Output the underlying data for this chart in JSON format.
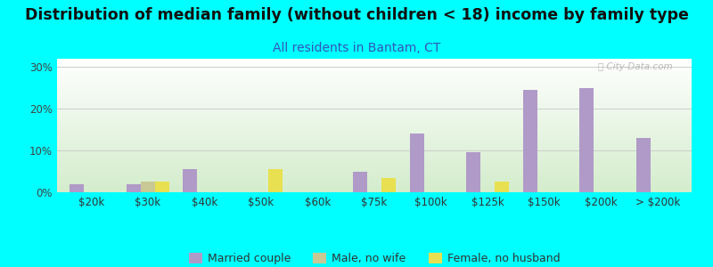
{
  "title": "Distribution of median family (without children < 18) income by family type",
  "subtitle": "All residents in Bantam, CT",
  "background_color": "#00FFFF",
  "categories": [
    "$20k",
    "$30k",
    "$40k",
    "$50k",
    "$60k",
    "$75k",
    "$100k",
    "$125k",
    "$150k",
    "$200k",
    "> $200k"
  ],
  "married_couple": [
    2.0,
    2.0,
    5.5,
    0.0,
    0.0,
    5.0,
    14.0,
    9.5,
    24.5,
    25.0,
    13.0
  ],
  "male_no_wife": [
    0.0,
    2.5,
    0.0,
    0.0,
    0.0,
    0.0,
    0.0,
    0.0,
    0.0,
    0.0,
    0.0
  ],
  "female_no_husband": [
    0.0,
    2.5,
    0.0,
    5.5,
    0.0,
    3.5,
    0.0,
    2.5,
    0.0,
    0.0,
    0.0
  ],
  "married_color": "#b09ac8",
  "male_color": "#c8c894",
  "female_color": "#e8e050",
  "ylim": [
    0,
    32
  ],
  "yticks": [
    0,
    10,
    20,
    30
  ],
  "bar_width": 0.25,
  "legend_labels": [
    "Married couple",
    "Male, no wife",
    "Female, no husband"
  ],
  "title_fontsize": 12.5,
  "subtitle_fontsize": 10,
  "tick_fontsize": 8.5,
  "legend_fontsize": 9,
  "gradient_top": "#ffffff",
  "gradient_bottom": "#d4edcc",
  "grid_color": "#cccccc",
  "watermark": "City-Data.com",
  "watermark_color": "#aaaaaa"
}
